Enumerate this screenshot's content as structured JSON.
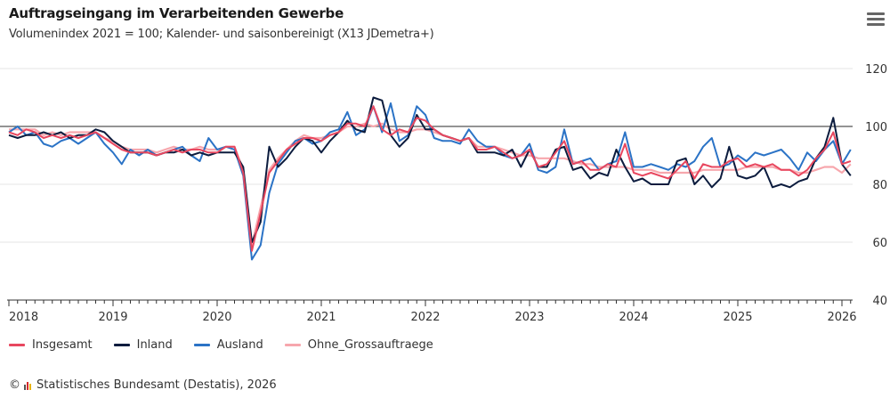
{
  "header": {
    "title": "Auftragseingang im Verarbeitenden Gewerbe",
    "subtitle": "Volumenindex 2021 = 100; Kalender- und saisonbereinigt (X13 JDemetra+)",
    "menu_icon": "hamburger-menu-icon"
  },
  "credits": {
    "copyright_symbol": "©",
    "text": "Statistisches Bundesamt (Destatis), 2026",
    "logo_icon": "destatis-logo-icon"
  },
  "chart_data": {
    "type": "line",
    "title": "Auftragseingang im Verarbeitenden Gewerbe",
    "subtitle": "Volumenindex 2021 = 100; Kalender- und saisonbereinigt (X13 JDemetra+)",
    "xlabel": "",
    "ylabel": "",
    "x_start": "2018-01",
    "x_end": "2026-02",
    "x_frequency": "monthly",
    "x_tick_labels": [
      "2018",
      "2019",
      "2020",
      "2021",
      "2022",
      "2023",
      "2024",
      "2025",
      "2026"
    ],
    "y_tick_labels": [
      "40",
      "60",
      "80",
      "100",
      "120"
    ],
    "ylim": [
      40,
      120
    ],
    "y_ticks": [
      40,
      60,
      80,
      100,
      120
    ],
    "reference_line": 100,
    "y_axis_position": "right",
    "grid": true,
    "legend_position": "bottom-left",
    "series": [
      {
        "name": "Insgesamt",
        "color": "#e8475f",
        "values": [
          98,
          97,
          99,
          98,
          96,
          97,
          96,
          97,
          96,
          97,
          98,
          96,
          94,
          92,
          91,
          91,
          91,
          90,
          91,
          92,
          91,
          92,
          92,
          91,
          91,
          93,
          93,
          84,
          57,
          70,
          84,
          88,
          92,
          94,
          96,
          96,
          95,
          97,
          98,
          101,
          101,
          100,
          107,
          99,
          97,
          99,
          98,
          103,
          102,
          99,
          97,
          96,
          95,
          96,
          92,
          92,
          93,
          91,
          89,
          90,
          92,
          86,
          87,
          91,
          95,
          87,
          88,
          85,
          85,
          87,
          86,
          94,
          84,
          83,
          84,
          83,
          82,
          85,
          88,
          82,
          87,
          86,
          86,
          88,
          89,
          86,
          87,
          86,
          87,
          85,
          85,
          83,
          85,
          89,
          92,
          98,
          87,
          88
        ]
      },
      {
        "name": "Inland",
        "color": "#0c1c3e",
        "values": [
          97,
          96,
          97,
          97,
          98,
          97,
          98,
          96,
          97,
          97,
          99,
          98,
          95,
          93,
          91,
          91,
          91,
          90,
          91,
          91,
          92,
          90,
          91,
          90,
          91,
          91,
          91,
          86,
          60,
          67,
          93,
          86,
          89,
          93,
          96,
          95,
          91,
          95,
          98,
          102,
          99,
          98,
          110,
          109,
          97,
          93,
          96,
          104,
          99,
          99,
          97,
          96,
          95,
          96,
          91,
          91,
          91,
          90,
          92,
          86,
          92,
          86,
          86,
          92,
          93,
          85,
          86,
          82,
          84,
          83,
          92,
          86,
          81,
          82,
          80,
          80,
          80,
          88,
          89,
          80,
          83,
          79,
          82,
          93,
          83,
          82,
          83,
          86,
          79,
          80,
          79,
          81,
          82,
          89,
          93,
          103,
          87,
          83
        ]
      },
      {
        "name": "Ausland",
        "color": "#2b73c6",
        "values": [
          98,
          100,
          97,
          98,
          94,
          93,
          95,
          96,
          94,
          96,
          98,
          94,
          91,
          87,
          92,
          90,
          92,
          90,
          91,
          92,
          93,
          90,
          88,
          96,
          92,
          93,
          92,
          83,
          54,
          59,
          77,
          87,
          91,
          95,
          96,
          94,
          95,
          98,
          99,
          105,
          97,
          99,
          107,
          98,
          108,
          95,
          97,
          107,
          104,
          96,
          95,
          95,
          94,
          99,
          95,
          93,
          93,
          90,
          89,
          90,
          94,
          85,
          84,
          86,
          99,
          87,
          88,
          89,
          85,
          87,
          88,
          98,
          86,
          86,
          87,
          86,
          85,
          87,
          86,
          88,
          93,
          96,
          86,
          87,
          90,
          88,
          91,
          90,
          91,
          92,
          89,
          85,
          91,
          88,
          92,
          95,
          87,
          92
        ]
      },
      {
        "name": "Ohne_Grossauftraege",
        "color": "#f7a7ad",
        "values": [
          99,
          99,
          99,
          99,
          97,
          98,
          97,
          98,
          98,
          98,
          98,
          96,
          95,
          93,
          92,
          92,
          92,
          91,
          92,
          93,
          92,
          92,
          93,
          92,
          92,
          93,
          93,
          85,
          59,
          72,
          85,
          89,
          92,
          95,
          97,
          96,
          96,
          97,
          98,
          100,
          100,
          101,
          100,
          101,
          99,
          98,
          98,
          99,
          99,
          98,
          97,
          96,
          95,
          96,
          93,
          93,
          93,
          92,
          91,
          90,
          90,
          89,
          89,
          89,
          89,
          88,
          87,
          87,
          86,
          86,
          86,
          86,
          85,
          85,
          85,
          84,
          84,
          84,
          84,
          84,
          85,
          85,
          85,
          85,
          85,
          86,
          86,
          86,
          86,
          85,
          85,
          84,
          84,
          85,
          86,
          86,
          84,
          87
        ]
      }
    ]
  }
}
